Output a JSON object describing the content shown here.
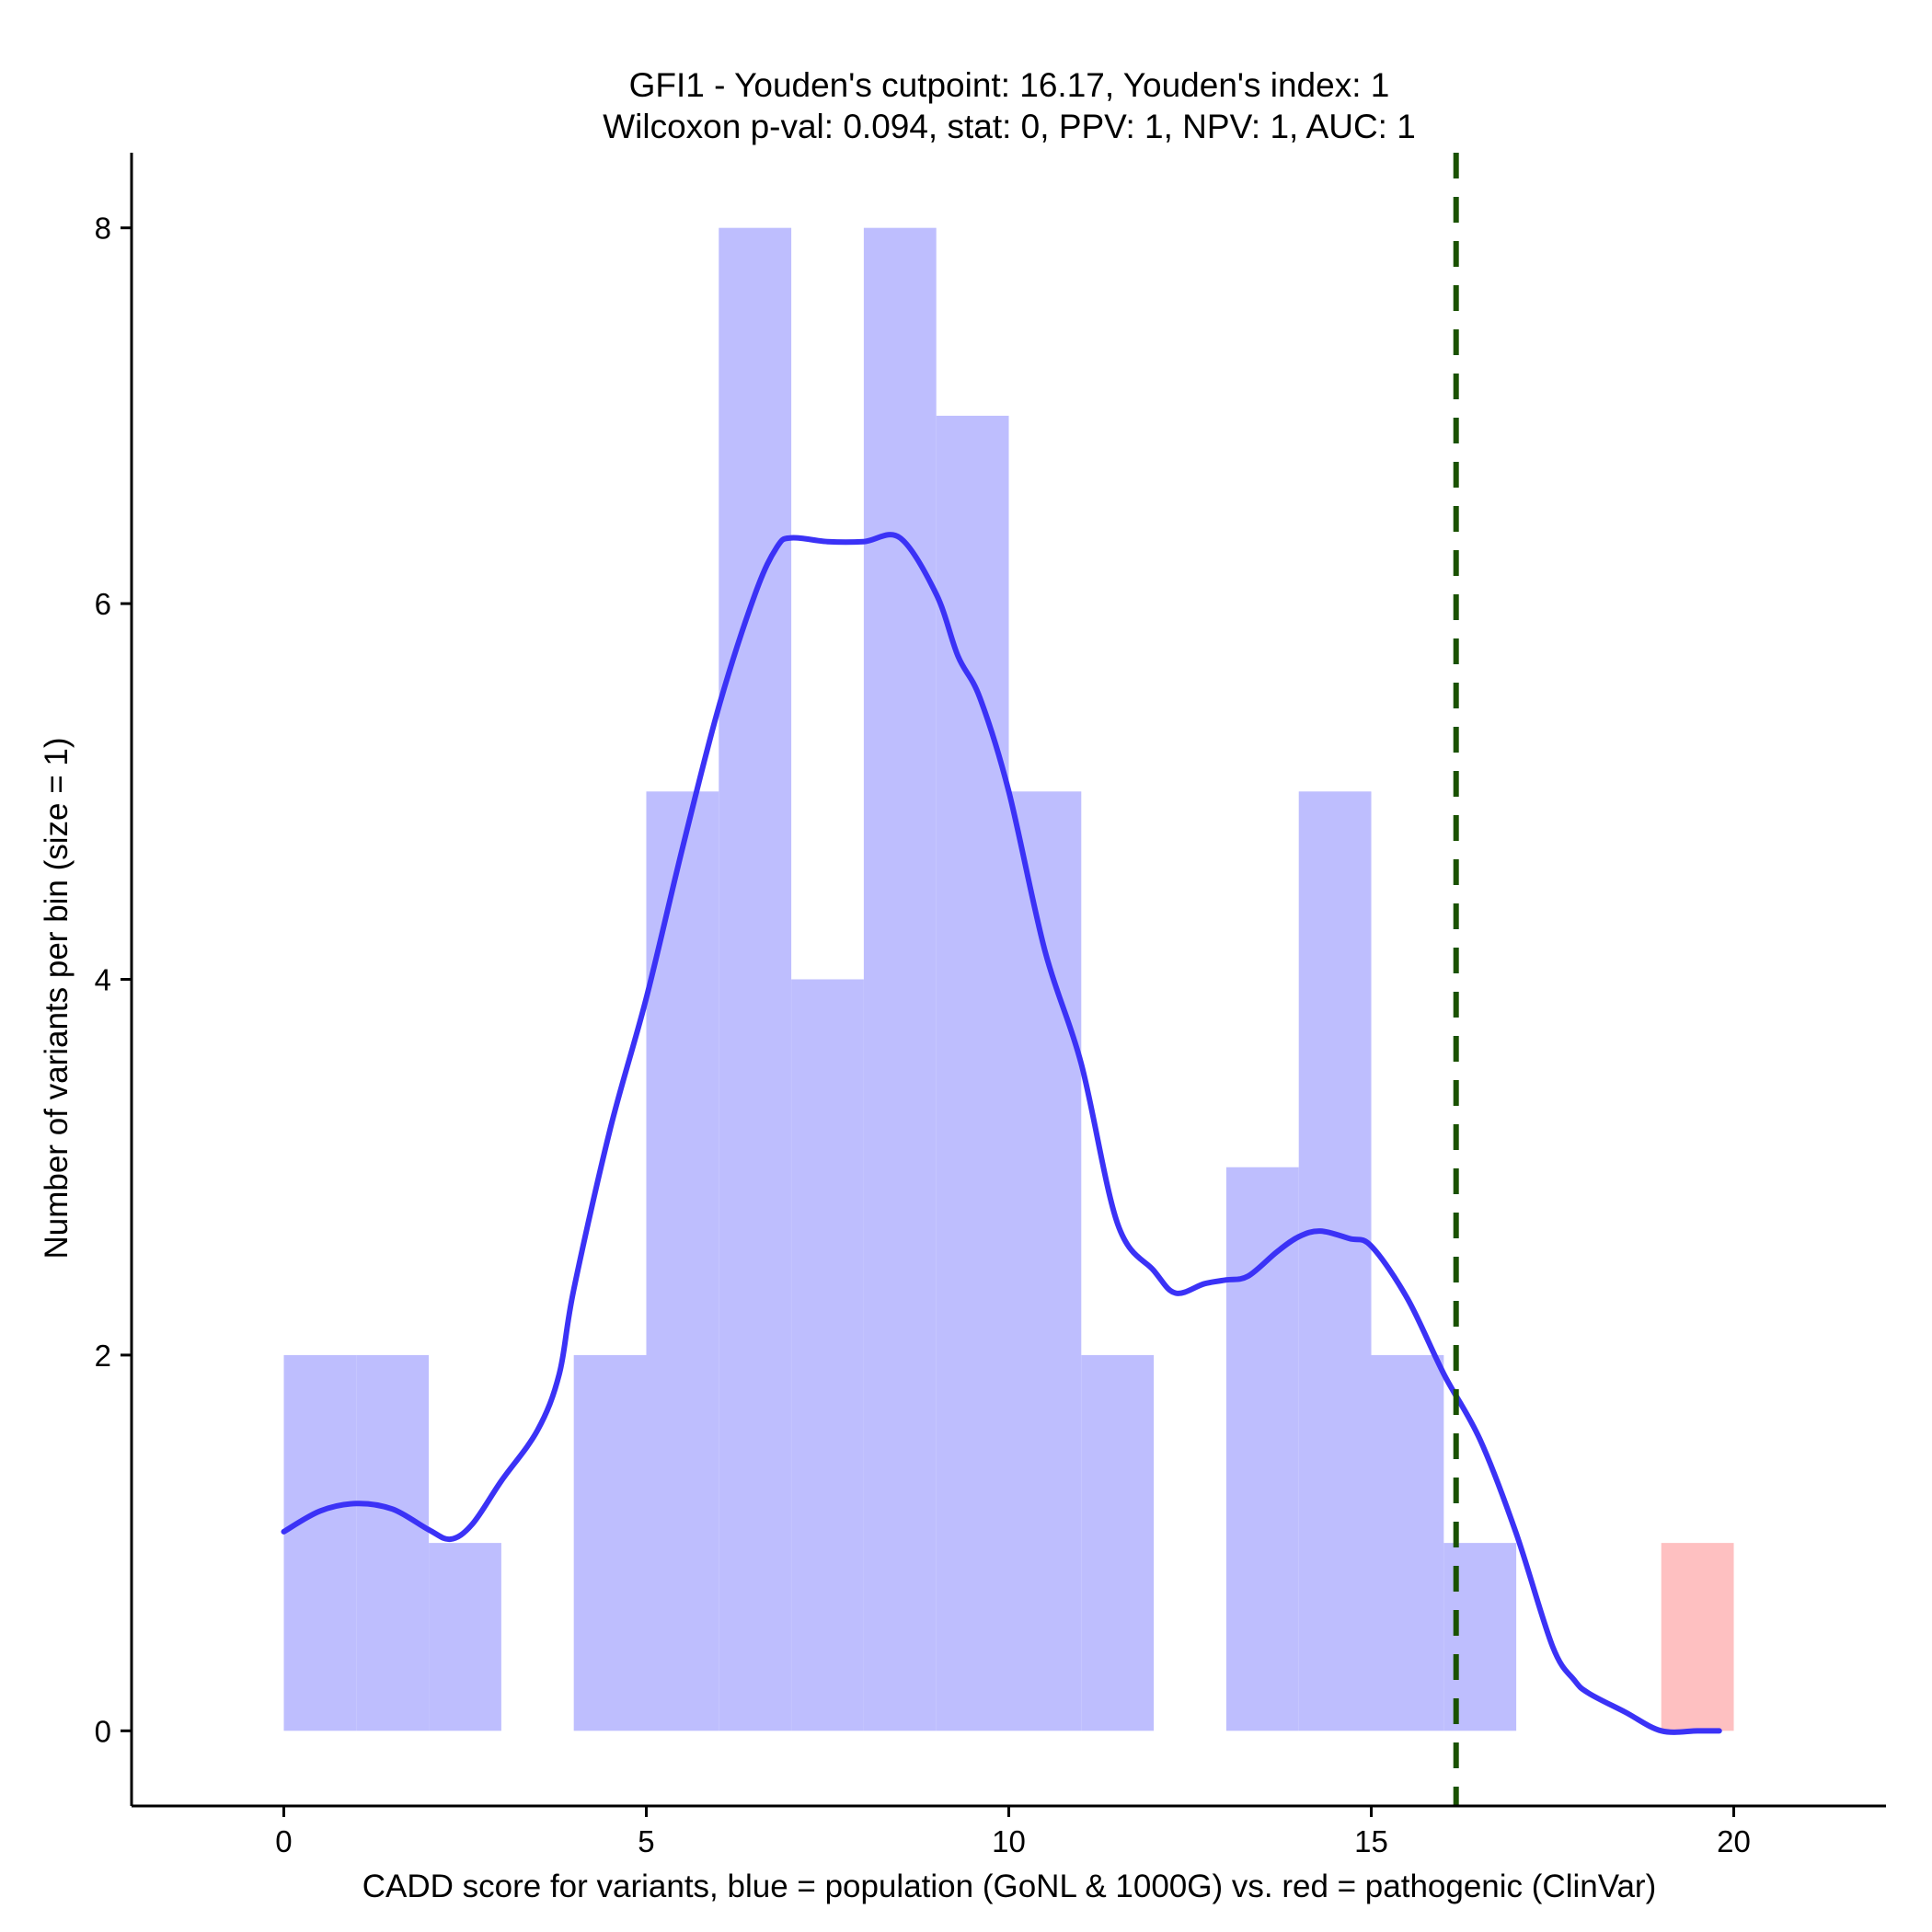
{
  "chart_data": {
    "type": "bar",
    "title_lines": [
      "GFI1 - Youden's cutpoint: 16.17, Youden's index: 1",
      "Wilcoxon p-val: 0.094, stat: 0, PPV: 1, NPV: 1, AUC: 1"
    ],
    "xlabel": "CADD score for variants, blue = population (GoNL & 1000G) vs. red = pathogenic (ClinVar)",
    "ylabel": "Number of variants per bin (size = 1)",
    "xlim": [
      -2.1,
      22.1
    ],
    "ylim": [
      -0.4,
      8.4
    ],
    "x_ticks": [
      0,
      5,
      10,
      15,
      20
    ],
    "y_ticks": [
      0,
      2,
      4,
      6,
      8
    ],
    "bin_width": 1,
    "series": [
      {
        "name": "population (GoNL & 1000G)",
        "color": "#bebefe",
        "bins": [
          {
            "x0": 0,
            "x1": 1,
            "count": 2
          },
          {
            "x0": 1,
            "x1": 2,
            "count": 2
          },
          {
            "x0": 2,
            "x1": 3,
            "count": 1
          },
          {
            "x0": 4,
            "x1": 5,
            "count": 2
          },
          {
            "x0": 5,
            "x1": 6,
            "count": 5
          },
          {
            "x0": 6,
            "x1": 7,
            "count": 8
          },
          {
            "x0": 7,
            "x1": 8,
            "count": 4
          },
          {
            "x0": 8,
            "x1": 9,
            "count": 8
          },
          {
            "x0": 9,
            "x1": 10,
            "count": 7
          },
          {
            "x0": 10,
            "x1": 11,
            "count": 5
          },
          {
            "x0": 11,
            "x1": 12,
            "count": 2
          },
          {
            "x0": 13,
            "x1": 14,
            "count": 3
          },
          {
            "x0": 14,
            "x1": 15,
            "count": 5
          },
          {
            "x0": 15,
            "x1": 16,
            "count": 2
          },
          {
            "x0": 16,
            "x1": 17,
            "count": 1
          }
        ]
      },
      {
        "name": "pathogenic (ClinVar)",
        "color": "#fec0c1",
        "bins": [
          {
            "x0": 19,
            "x1": 20,
            "count": 1
          }
        ]
      }
    ],
    "density": {
      "color": "#3b32f6",
      "points": [
        [
          0.0,
          1.06
        ],
        [
          0.5,
          1.17
        ],
        [
          1.0,
          1.21
        ],
        [
          1.5,
          1.18
        ],
        [
          2.0,
          1.07
        ],
        [
          2.3,
          1.02
        ],
        [
          2.6,
          1.1
        ],
        [
          3.0,
          1.33
        ],
        [
          3.5,
          1.6
        ],
        [
          3.8,
          1.9
        ],
        [
          4.0,
          2.35
        ],
        [
          4.5,
          3.2
        ],
        [
          5.0,
          3.9
        ],
        [
          5.5,
          4.7
        ],
        [
          6.0,
          5.45
        ],
        [
          6.5,
          6.05
        ],
        [
          6.8,
          6.3
        ],
        [
          7.0,
          6.35
        ],
        [
          7.5,
          6.33
        ],
        [
          8.0,
          6.33
        ],
        [
          8.5,
          6.35
        ],
        [
          9.0,
          6.05
        ],
        [
          9.3,
          5.72
        ],
        [
          9.6,
          5.5
        ],
        [
          10.0,
          5.0
        ],
        [
          10.5,
          4.15
        ],
        [
          11.0,
          3.55
        ],
        [
          11.5,
          2.7
        ],
        [
          12.0,
          2.45
        ],
        [
          12.3,
          2.33
        ],
        [
          12.7,
          2.38
        ],
        [
          13.0,
          2.4
        ],
        [
          13.3,
          2.42
        ],
        [
          13.7,
          2.55
        ],
        [
          14.0,
          2.63
        ],
        [
          14.3,
          2.66
        ],
        [
          14.7,
          2.62
        ],
        [
          15.0,
          2.58
        ],
        [
          15.5,
          2.3
        ],
        [
          16.0,
          1.9
        ],
        [
          16.5,
          1.55
        ],
        [
          17.0,
          1.05
        ],
        [
          17.5,
          0.45
        ],
        [
          17.8,
          0.27
        ],
        [
          18.0,
          0.2
        ],
        [
          18.5,
          0.1
        ],
        [
          19.0,
          0.0
        ],
        [
          19.5,
          0.0
        ],
        [
          19.8,
          0.0
        ]
      ]
    },
    "cutpoint": {
      "x": 16.17,
      "color": "#1a5200"
    },
    "grid": false
  }
}
